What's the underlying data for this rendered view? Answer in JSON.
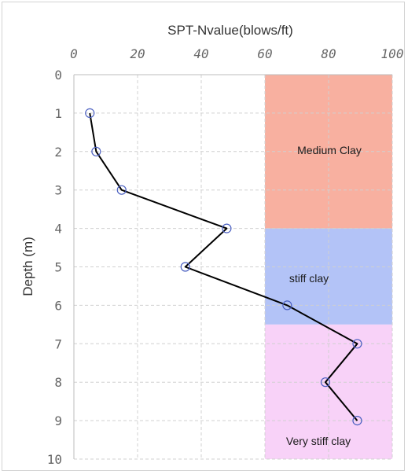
{
  "chart_data": {
    "type": "line",
    "title": "",
    "xlabel": "SPT-Nvalue(blows/ft)",
    "ylabel": "Depth (m)",
    "xlim": [
      0,
      100
    ],
    "ylim": [
      10,
      0
    ],
    "x_ticks": [
      "0",
      "20",
      "40",
      "60",
      "80",
      "100"
    ],
    "y_ticks": [
      "0",
      "1",
      "2",
      "3",
      "4",
      "5",
      "6",
      "7",
      "8",
      "9",
      "10"
    ],
    "x_axis_position": "top",
    "y_axis_inverted": true,
    "grid": true,
    "series": [
      {
        "color": "#000000",
        "marker": "open-circle",
        "marker_color": "#4a5fc1",
        "points": [
          {
            "x": 5,
            "y": 1
          },
          {
            "x": 7,
            "y": 2
          },
          {
            "x": 15,
            "y": 3
          },
          {
            "x": 48,
            "y": 4
          },
          {
            "x": 35,
            "y": 5
          },
          {
            "x": 67,
            "y": 6
          },
          {
            "x": 89,
            "y": 7
          },
          {
            "x": 79,
            "y": 8
          },
          {
            "x": 89,
            "y": 9
          }
        ]
      }
    ],
    "zones": [
      {
        "label": "Medium Clay",
        "x_from": 60,
        "x_to": 100,
        "depth_from": 0,
        "depth_to": 4,
        "color": "#f8b0a0"
      },
      {
        "label": "stiff clay",
        "x_from": 60,
        "x_to": 100,
        "depth_from": 4,
        "depth_to": 6.5,
        "color": "#b3c3f7"
      },
      {
        "label": "Very stiff clay",
        "x_from": 60,
        "x_to": 100,
        "depth_from": 6.5,
        "depth_to": 10,
        "color": "#f8d2f8"
      }
    ]
  }
}
